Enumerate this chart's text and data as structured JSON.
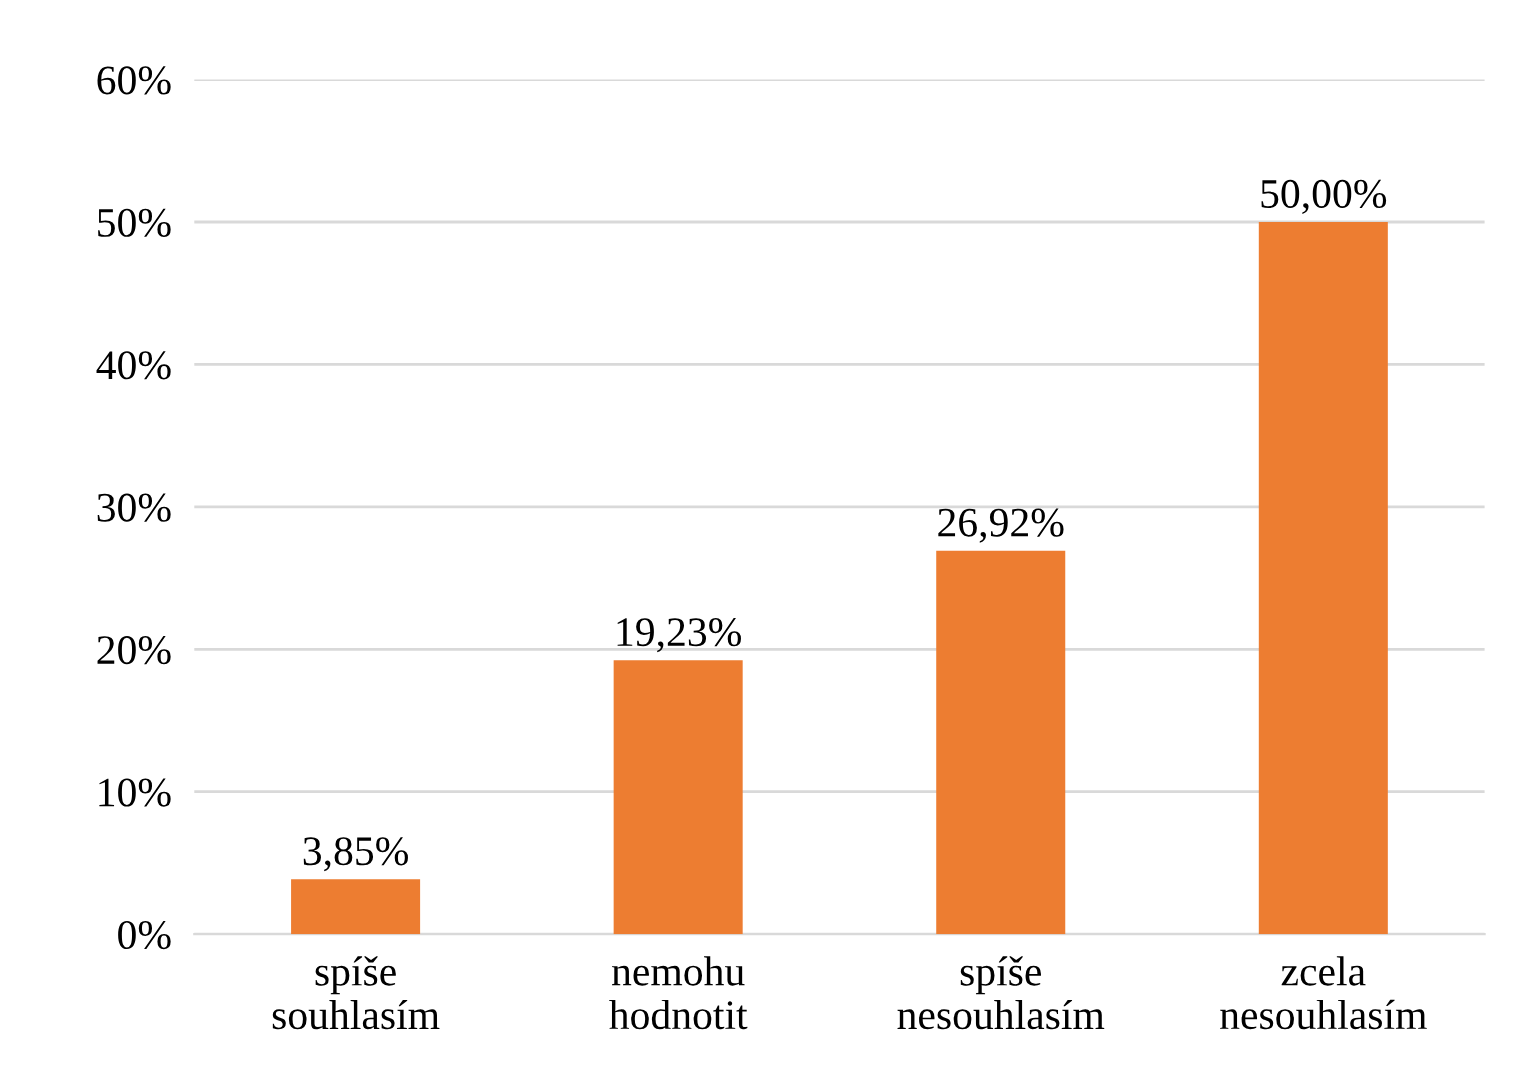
{
  "chart_data": {
    "type": "bar",
    "categories": [
      "spíše\nsouhlasím",
      "nemohu\nhodnotit",
      "spíše\nnesouhlasím",
      "zcela\nnesouhlasím"
    ],
    "values": [
      3.85,
      19.23,
      26.92,
      50.0
    ],
    "value_labels": [
      "3,85%",
      "19,23%",
      "26,92%",
      "50,00%"
    ],
    "color": "#ed7d31",
    "ylim": [
      0,
      60
    ],
    "yticks": [
      {
        "value": 0,
        "label": "0%"
      },
      {
        "value": 10,
        "label": "10%"
      },
      {
        "value": 20,
        "label": "20%"
      },
      {
        "value": 30,
        "label": "30%"
      },
      {
        "value": 40,
        "label": "40%"
      },
      {
        "value": 50,
        "label": "50%"
      },
      {
        "value": 60,
        "label": "60%"
      }
    ],
    "grid": "y",
    "legend": false
  }
}
